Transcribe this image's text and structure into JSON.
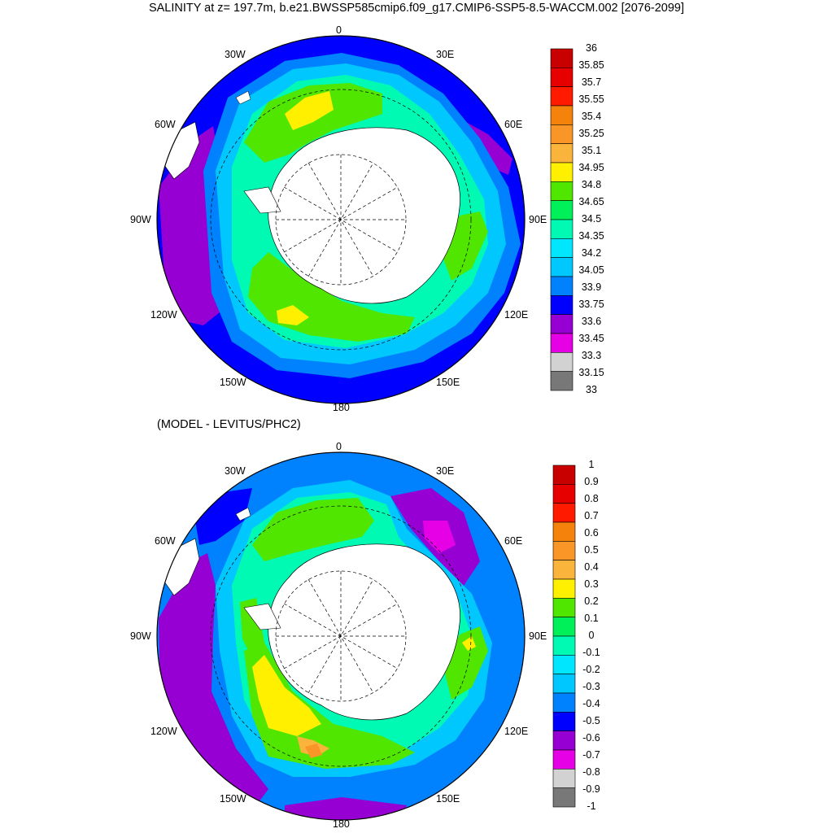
{
  "title": "SALINITY at z= 197.7m, b.e21.BWSSP585cmip6.f09_g17.CMIP6-SSP5-8.5-WACCM.002 [2076-2099]",
  "subtitle": "(MODEL - LEVITUS/PHC2)",
  "lon_labels": {
    "l0": "0",
    "l30e": "30E",
    "l60e": "60E",
    "l90e": "90E",
    "l120e": "120E",
    "l150e": "150E",
    "l180": "180",
    "l150w": "150W",
    "l120w": "120W",
    "l90w": "90W",
    "l60w": "60W",
    "l30w": "30W"
  },
  "colorbar_top": {
    "labels": [
      "36",
      "35.85",
      "35.7",
      "35.55",
      "35.4",
      "35.25",
      "35.1",
      "34.95",
      "34.8",
      "34.65",
      "34.5",
      "34.35",
      "34.2",
      "34.05",
      "33.9",
      "33.75",
      "33.6",
      "33.45",
      "33.3",
      "33.15",
      "33"
    ],
    "colors": [
      "#c80000",
      "#e60000",
      "#ff1a00",
      "#f5820a",
      "#fa9628",
      "#fab43c",
      "#fff000",
      "#50e600",
      "#00f05a",
      "#00fab4",
      "#00e6ff",
      "#00c8ff",
      "#0082ff",
      "#0000ff",
      "#9600d2",
      "#e600e6",
      "#d2d2d2",
      "#787878"
    ]
  },
  "colorbar_bottom": {
    "labels": [
      "1",
      "0.9",
      "0.8",
      "0.7",
      "0.6",
      "0.5",
      "0.4",
      "0.3",
      "0.2",
      "0.1",
      "0",
      "-0.1",
      "-0.2",
      "-0.3",
      "-0.4",
      "-0.5",
      "-0.6",
      "-0.7",
      "-0.8",
      "-0.9",
      "-1"
    ],
    "colors": [
      "#c80000",
      "#e60000",
      "#ff1a00",
      "#f5820a",
      "#fa9628",
      "#fab43c",
      "#fff000",
      "#50e600",
      "#00f05a",
      "#00fab4",
      "#00e6ff",
      "#00c8ff",
      "#0082ff",
      "#0000ff",
      "#9600d2",
      "#e600e6",
      "#d2d2d2",
      "#787878"
    ]
  }
}
